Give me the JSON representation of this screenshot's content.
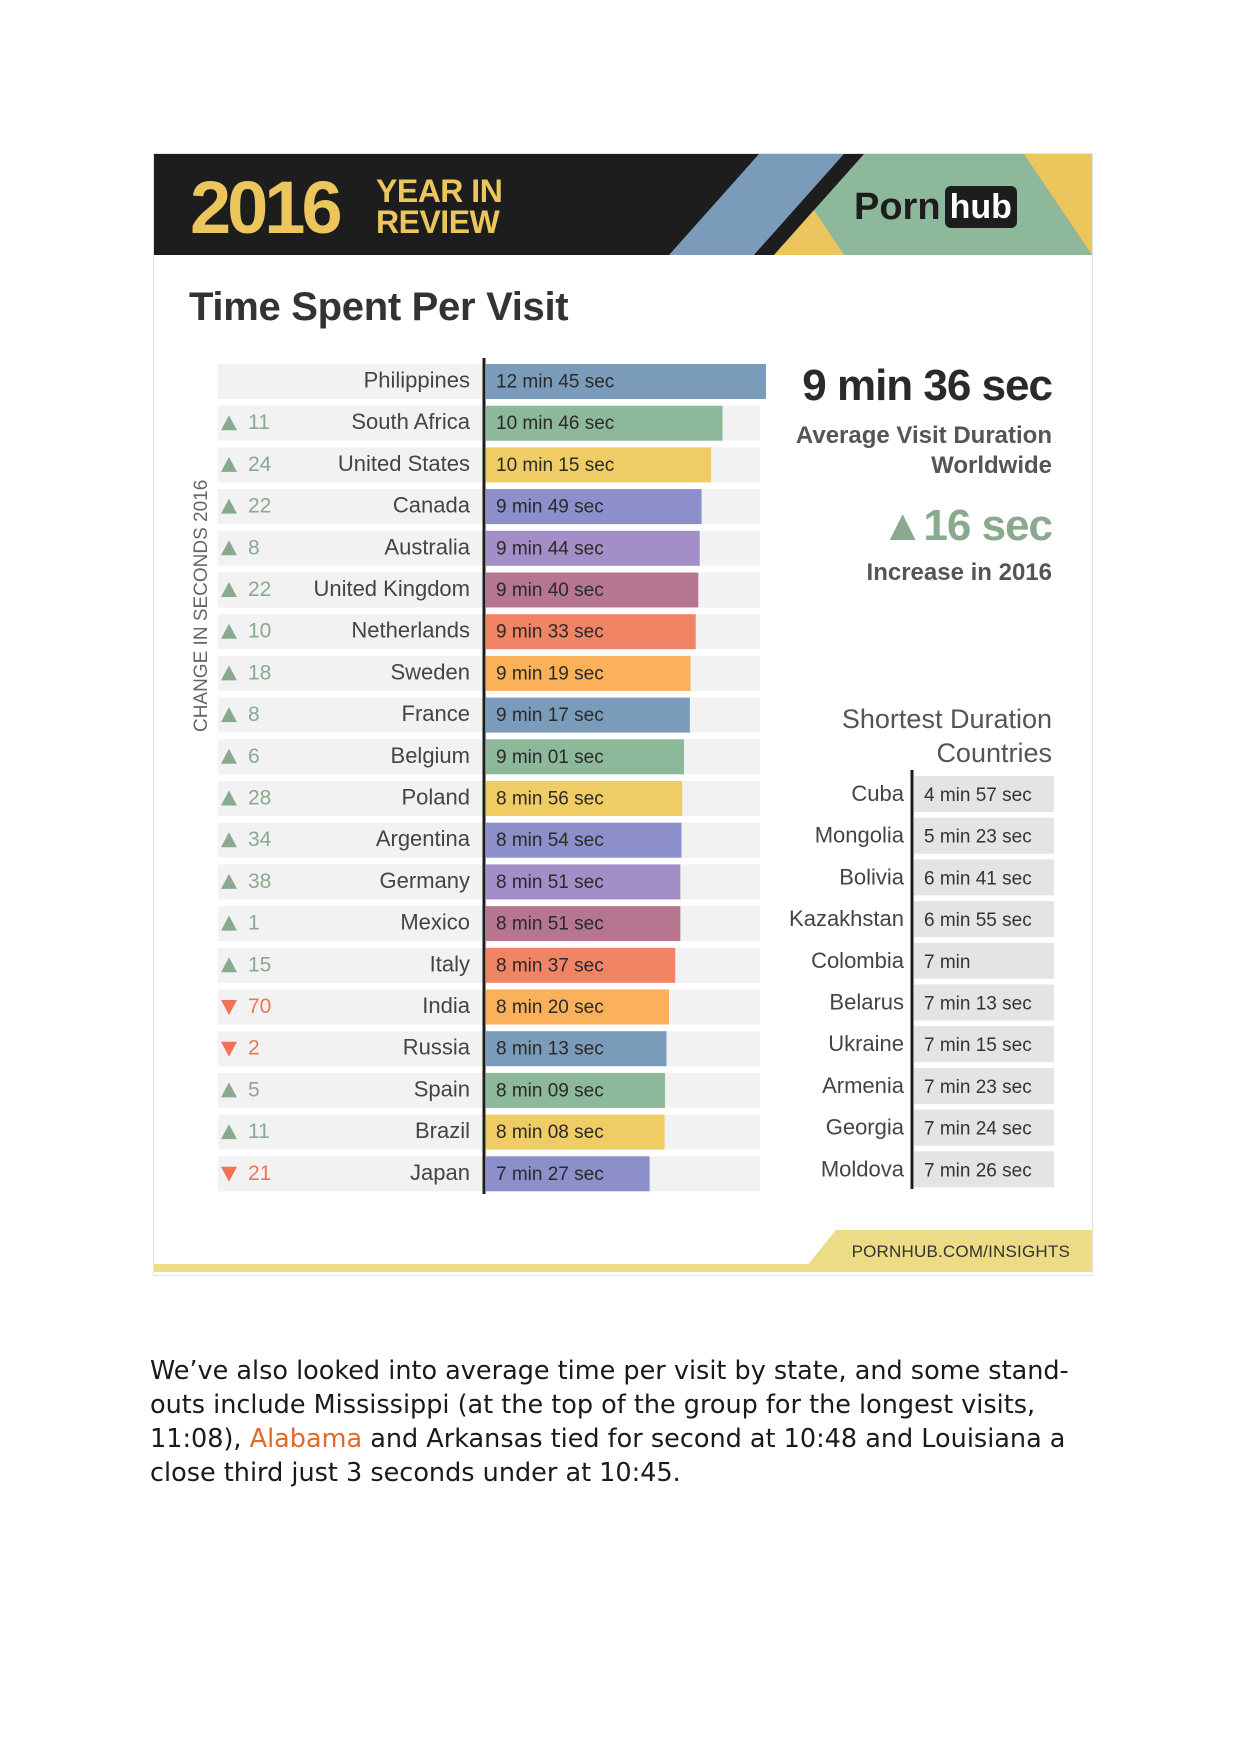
{
  "header": {
    "year": "2016",
    "year_in_review": "YEAR IN REVIEW",
    "brand_porn": "Porn",
    "brand_hub": "hub"
  },
  "title": "Time Spent Per Visit",
  "summary": {
    "average_value": "9 min 36 sec",
    "average_label": "Average Visit Duration Worldwide",
    "increase_value": "▲16 sec",
    "increase_label": "Increase in 2016",
    "shortest_title": "Shortest Duration Countries"
  },
  "source": "PORNHUB.COM/INSIGHTS",
  "colors": {
    "blue": "#7a9cba",
    "green": "#8db89a",
    "yellow": "#f0cc65",
    "slate": "#8c8fca",
    "violet": "#a48ec8",
    "mauve": "#b7768f",
    "salmon": "#f28466",
    "orange": "#fbb05a",
    "up": "#8aaa90",
    "down": "#f07358",
    "grey_box": "#e4e4e4"
  },
  "chart_data": [
    {
      "type": "bar",
      "orientation": "horizontal",
      "axis_label": "CHANGE IN SECONDS 2016",
      "x_max_seconds": 765,
      "rows": [
        {
          "country": "Philippines",
          "value_seconds": 765,
          "label": "12 min 45 sec",
          "change": "",
          "direction": "none"
        },
        {
          "country": "South Africa",
          "value_seconds": 646,
          "label": "10 min 46 sec",
          "change": "11",
          "direction": "up"
        },
        {
          "country": "United States",
          "value_seconds": 615,
          "label": "10 min 15 sec",
          "change": "24",
          "direction": "up"
        },
        {
          "country": "Canada",
          "value_seconds": 589,
          "label": "9 min 49 sec",
          "change": "22",
          "direction": "up"
        },
        {
          "country": "Australia",
          "value_seconds": 584,
          "label": "9 min 44 sec",
          "change": "8",
          "direction": "up"
        },
        {
          "country": "United Kingdom",
          "value_seconds": 580,
          "label": "9 min 40 sec",
          "change": "22",
          "direction": "up"
        },
        {
          "country": "Netherlands",
          "value_seconds": 573,
          "label": "9 min 33 sec",
          "change": "10",
          "direction": "up"
        },
        {
          "country": "Sweden",
          "value_seconds": 559,
          "label": "9 min 19 sec",
          "change": "18",
          "direction": "up"
        },
        {
          "country": "France",
          "value_seconds": 557,
          "label": "9 min 17 sec",
          "change": "8",
          "direction": "up"
        },
        {
          "country": "Belgium",
          "value_seconds": 541,
          "label": "9 min 01 sec",
          "change": "6",
          "direction": "up"
        },
        {
          "country": "Poland",
          "value_seconds": 536,
          "label": "8 min 56 sec",
          "change": "28",
          "direction": "up"
        },
        {
          "country": "Argentina",
          "value_seconds": 534,
          "label": "8 min 54 sec",
          "change": "34",
          "direction": "up"
        },
        {
          "country": "Germany",
          "value_seconds": 531,
          "label": "8 min 51 sec",
          "change": "38",
          "direction": "up"
        },
        {
          "country": "Mexico",
          "value_seconds": 531,
          "label": "8 min 51 sec",
          "change": "1",
          "direction": "up"
        },
        {
          "country": "Italy",
          "value_seconds": 517,
          "label": "8 min 37 sec",
          "change": "15",
          "direction": "up"
        },
        {
          "country": "India",
          "value_seconds": 500,
          "label": "8 min 20 sec",
          "change": "70",
          "direction": "down"
        },
        {
          "country": "Russia",
          "value_seconds": 493,
          "label": "8 min 13 sec",
          "change": "2",
          "direction": "down"
        },
        {
          "country": "Spain",
          "value_seconds": 489,
          "label": "8 min 09 sec",
          "change": "5",
          "direction": "up"
        },
        {
          "country": "Brazil",
          "value_seconds": 488,
          "label": "8 min 08 sec",
          "change": "11",
          "direction": "up"
        },
        {
          "country": "Japan",
          "value_seconds": 447,
          "label": "7 min 27 sec",
          "change": "21",
          "direction": "down"
        }
      ],
      "bar_colors": [
        "blue",
        "green",
        "yellow",
        "slate",
        "violet",
        "mauve",
        "salmon",
        "orange"
      ]
    },
    {
      "type": "table",
      "title": "Shortest Duration Countries",
      "rows": [
        {
          "country": "Cuba",
          "value_seconds": 297,
          "label": "4 min 57 sec"
        },
        {
          "country": "Mongolia",
          "value_seconds": 323,
          "label": "5 min 23 sec"
        },
        {
          "country": "Bolivia",
          "value_seconds": 401,
          "label": "6 min 41 sec"
        },
        {
          "country": "Kazakhstan",
          "value_seconds": 415,
          "label": "6 min 55 sec"
        },
        {
          "country": "Colombia",
          "value_seconds": 420,
          "label": "7 min"
        },
        {
          "country": "Belarus",
          "value_seconds": 433,
          "label": "7 min 13 sec"
        },
        {
          "country": "Ukraine",
          "value_seconds": 435,
          "label": "7 min 15 sec"
        },
        {
          "country": "Armenia",
          "value_seconds": 443,
          "label": "7 min 23 sec"
        },
        {
          "country": "Georgia",
          "value_seconds": 444,
          "label": "7 min 24 sec"
        },
        {
          "country": "Moldova",
          "value_seconds": 446,
          "label": "7 min 26 sec"
        }
      ]
    }
  ],
  "caption": {
    "before_link": "We’ve also looked into average time per visit by state, and some stand-outs include Mississippi (at the top of the group for the longest visits, 11:08), ",
    "link_text": "Alabama",
    "after_link": " and Arkansas tied for second at 10:48 and Louisiana a close third just 3 seconds under at 10:45."
  }
}
